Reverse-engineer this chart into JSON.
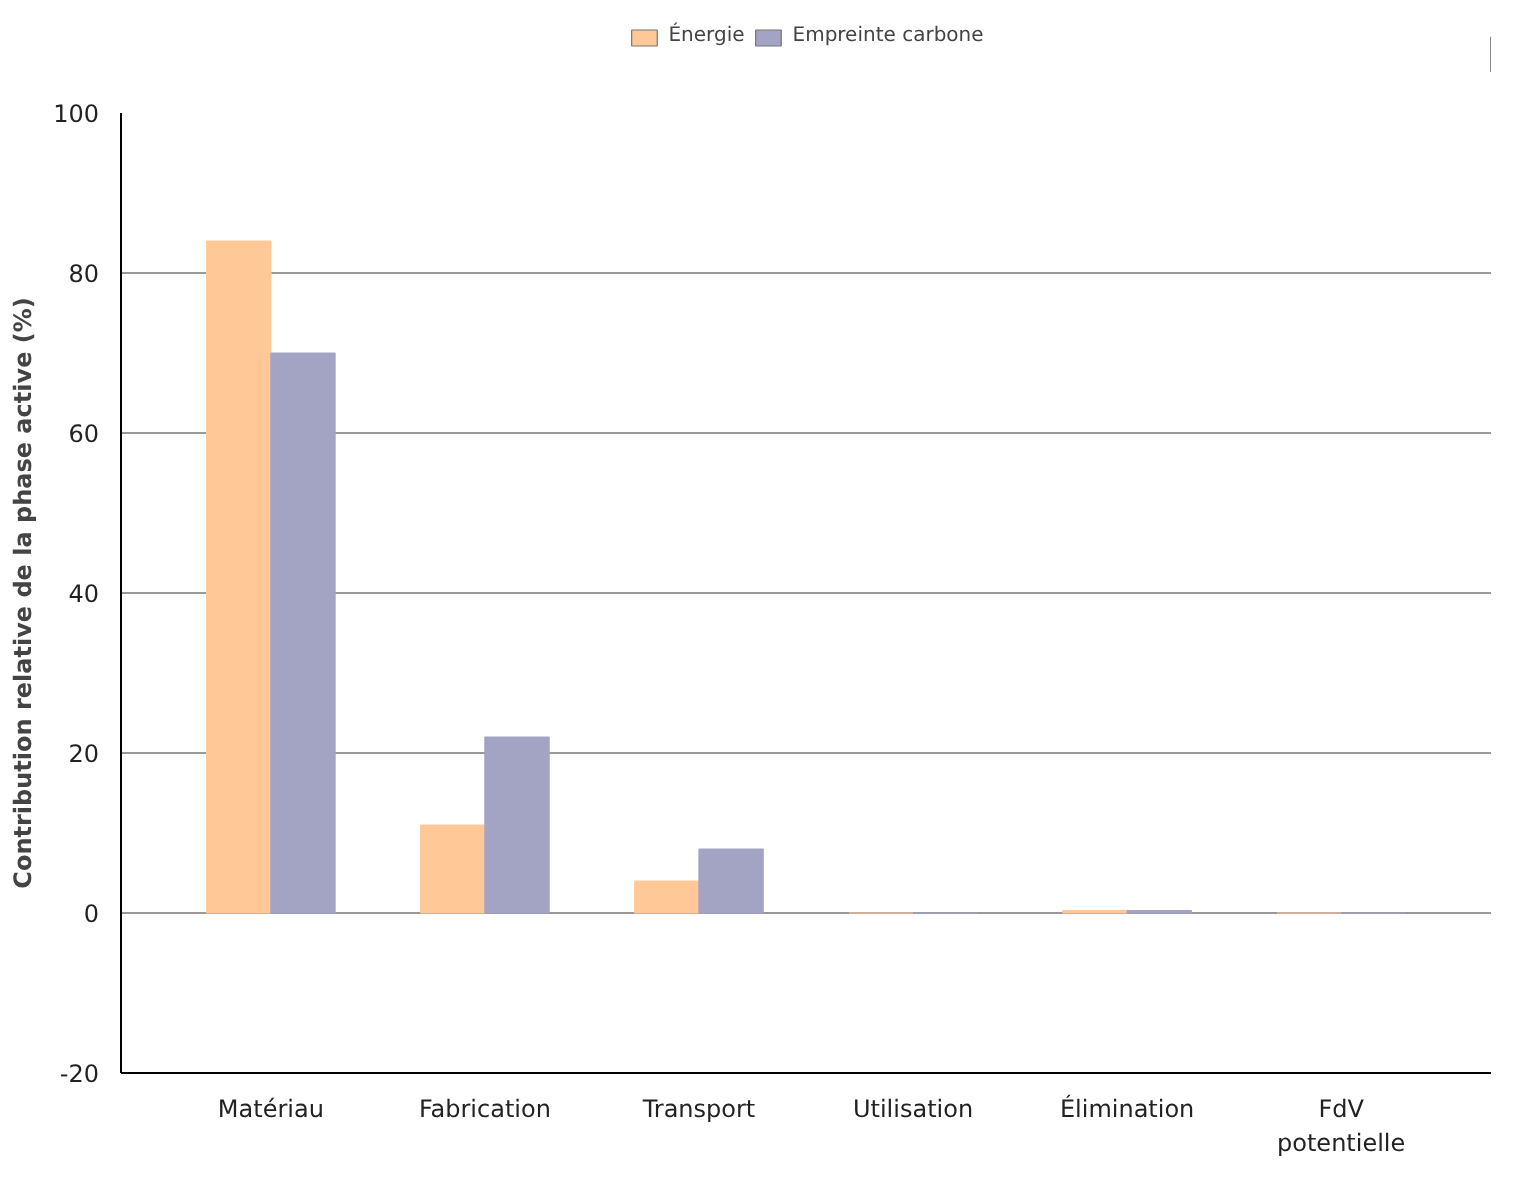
{
  "chart_data": {
    "type": "bar",
    "ylabel": "Contribution relative de la phase active (%)",
    "categories": [
      "Matériau",
      "Fabrication",
      "Transport",
      "Utilisation",
      "Élimination",
      "FdV\npotentielle"
    ],
    "series": [
      {
        "name": "Énergie",
        "color": "#ffc896",
        "values": [
          84,
          11,
          4,
          0,
          0.3,
          0
        ]
      },
      {
        "name": "Empreinte carbone",
        "color": "#a3a3c3",
        "values": [
          70,
          22,
          8,
          0,
          0.3,
          0
        ]
      }
    ],
    "ylim": [
      -20,
      100
    ],
    "yticks": [
      -20,
      0,
      20,
      40,
      60,
      80,
      100
    ],
    "grid": "y",
    "legend": "top"
  }
}
